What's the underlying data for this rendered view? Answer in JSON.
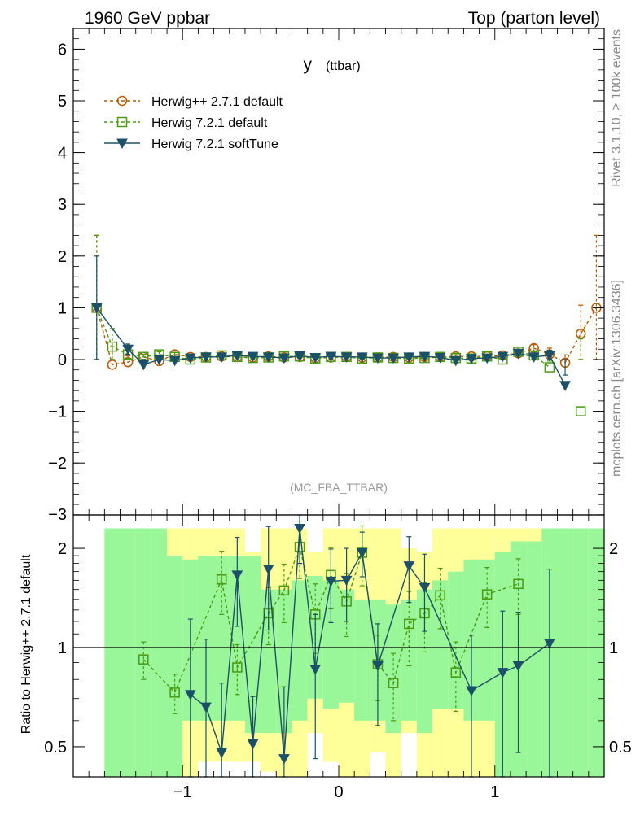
{
  "header": {
    "left": "1960 GeV ppbar",
    "right": "Top (parton level)"
  },
  "side_text": {
    "rivet": "Rivet 3.1.10, ≥ 100k events",
    "mcplots": "mcplots.cern.ch [arXiv:1306.3436]"
  },
  "watermark": "(MC_FBA_TTBAR)",
  "chart_data": [
    {
      "type": "line",
      "title": "y (ttbar)",
      "title_main": "y",
      "title_sub": "(ttbar)",
      "xlim": [
        -1.7,
        1.7
      ],
      "ylim": [
        -3,
        6.4
      ],
      "xticks": [
        -1,
        0,
        1
      ],
      "xtick_labels": [
        "−1",
        "0",
        "1"
      ],
      "yticks": [
        -2,
        -1,
        0,
        1,
        2,
        3,
        4,
        5,
        6
      ],
      "ytick_labels": [
        "−2",
        "−1",
        "0",
        "1",
        "2",
        "3",
        "4",
        "5",
        "6"
      ],
      "legend_position": "top-left",
      "series": [
        {
          "name": "Herwig++ 2.7.1 default",
          "color": "#b35a00",
          "marker": "circle",
          "dashed": true,
          "x": [
            -1.55,
            -1.45,
            -1.35,
            -1.25,
            -1.15,
            -1.05,
            -0.95,
            -0.85,
            -0.75,
            -0.65,
            -0.55,
            -0.45,
            -0.35,
            -0.25,
            -0.15,
            -0.05,
            0.05,
            0.15,
            0.25,
            0.35,
            0.45,
            0.55,
            0.65,
            0.75,
            0.85,
            0.95,
            1.05,
            1.15,
            1.25,
            1.35,
            1.45,
            1.55,
            1.65
          ],
          "y": [
            1.0,
            -0.1,
            -0.05,
            0.05,
            -0.03,
            0.1,
            0.05,
            0.05,
            0.06,
            0.05,
            0.04,
            0.06,
            0.04,
            0.05,
            0.03,
            0.04,
            0.05,
            0.04,
            0.04,
            0.05,
            0.04,
            0.05,
            0.05,
            0.06,
            0.06,
            0.06,
            0.08,
            0.12,
            0.22,
            0.1,
            -0.06,
            0.5,
            1.0
          ],
          "err": [
            1.4,
            0.35,
            0.12,
            0.05,
            0.05,
            0.04,
            0.03,
            0.03,
            0.03,
            0.03,
            0.03,
            0.03,
            0.03,
            0.03,
            0.03,
            0.03,
            0.03,
            0.03,
            0.03,
            0.03,
            0.03,
            0.03,
            0.03,
            0.03,
            0.03,
            0.04,
            0.04,
            0.05,
            0.07,
            0.12,
            0.15,
            0.55,
            1.4
          ]
        },
        {
          "name": "Herwig 7.2.1 default",
          "color": "#4a9a12",
          "marker": "square",
          "dashed": true,
          "x": [
            -1.55,
            -1.45,
            -1.35,
            -1.25,
            -1.15,
            -1.05,
            -0.95,
            -0.85,
            -0.75,
            -0.65,
            -0.55,
            -0.45,
            -0.35,
            -0.25,
            -0.15,
            -0.05,
            0.05,
            0.15,
            0.25,
            0.35,
            0.45,
            0.55,
            0.65,
            0.75,
            0.85,
            0.95,
            1.05,
            1.15,
            1.25,
            1.35,
            1.45,
            1.55,
            1.65
          ],
          "y": [
            1.0,
            0.25,
            0.1,
            0.05,
            0.1,
            0.05,
            0.0,
            0.04,
            0.08,
            0.05,
            0.03,
            0.04,
            0.06,
            0.06,
            0.02,
            0.05,
            0.05,
            0.02,
            0.04,
            0.03,
            0.02,
            0.03,
            0.05,
            0.03,
            0.02,
            0.06,
            0.0,
            0.15,
            0.08,
            -0.15,
            null,
            -1.0,
            null
          ],
          "err": [
            1.4,
            0.35,
            0.12,
            0.05,
            0.05,
            0.04,
            0.03,
            0.03,
            0.03,
            0.03,
            0.03,
            0.03,
            0.03,
            0.03,
            0.03,
            0.03,
            0.03,
            0.03,
            0.03,
            0.03,
            0.03,
            0.03,
            0.03,
            0.03,
            0.03,
            0.04,
            0.04,
            0.05,
            0.07,
            0.12,
            0.15,
            1.4,
            0
          ]
        },
        {
          "name": "Herwig 7.2.1 softTune",
          "color": "#1b5068",
          "marker": "triangle-down",
          "dashed": false,
          "x": [
            -1.55,
            -1.35,
            -1.25,
            -1.15,
            -1.05,
            -0.95,
            -0.85,
            -0.75,
            -0.65,
            -0.55,
            -0.45,
            -0.35,
            -0.25,
            -0.15,
            -0.05,
            0.05,
            0.15,
            0.25,
            0.35,
            0.45,
            0.55,
            0.65,
            0.75,
            0.85,
            0.95,
            1.05,
            1.15,
            1.25,
            1.35,
            1.45
          ],
          "y": [
            1.0,
            0.2,
            -0.1,
            0.0,
            -0.02,
            0.03,
            0.05,
            0.05,
            0.08,
            0.06,
            0.05,
            0.03,
            0.07,
            0.04,
            0.06,
            0.05,
            0.05,
            0.03,
            0.03,
            0.05,
            0.06,
            0.04,
            -0.02,
            0.02,
            0.03,
            0.06,
            0.12,
            0.05,
            0.08,
            -0.5
          ],
          "err": [
            1.0,
            0.1,
            0.05,
            0.05,
            0.04,
            0.03,
            0.03,
            0.03,
            0.03,
            0.03,
            0.03,
            0.03,
            0.03,
            0.03,
            0.03,
            0.03,
            0.03,
            0.03,
            0.03,
            0.03,
            0.03,
            0.03,
            0.03,
            0.03,
            0.04,
            0.04,
            0.05,
            0.07,
            0.1,
            0.2
          ]
        }
      ]
    },
    {
      "type": "line",
      "title": "",
      "ylabel": "Ratio to Herwig++ 2.7.1 default",
      "xlim": [
        -1.7,
        1.7
      ],
      "ylim": [
        0.4,
        2.3
      ],
      "xticks": [
        -1,
        0,
        1
      ],
      "xtick_labels": [
        "−1",
        "0",
        "1"
      ],
      "yticks": [
        0.5,
        1,
        2
      ],
      "ytick_labels": [
        "0.5",
        "1",
        "2"
      ],
      "reference_line": 1,
      "bands": {
        "bins": [
          -1.5,
          -1.4,
          -1.3,
          -1.2,
          -1.1,
          -1.0,
          -0.9,
          -0.8,
          -0.7,
          -0.6,
          -0.5,
          -0.4,
          -0.3,
          -0.2,
          -0.1,
          0.0,
          0.1,
          0.2,
          0.3,
          0.4,
          0.5,
          0.6,
          0.7,
          0.8,
          0.9,
          1.0,
          1.1,
          1.2,
          1.3,
          1.4,
          1.5,
          1.6,
          1.7
        ],
        "yellow_color": "#ffff99",
        "green_color": "#99f699",
        "yellow_lo": [
          0.4,
          0.4,
          0.4,
          0.4,
          0.5,
          0.4,
          0.45,
          0.45,
          0.45,
          0.45,
          0.42,
          0.4,
          0.4,
          0.55,
          0.45,
          0.4,
          0.4,
          0.48,
          0.4,
          0.55,
          0.4,
          0.4,
          0.4,
          0.4,
          0.4,
          0.4,
          0.4,
          0.4,
          0.4,
          0.4,
          0.4,
          0.4
        ],
        "yellow_hi": [
          2.3,
          2.3,
          2.3,
          2.3,
          2.3,
          2.3,
          2.3,
          2.3,
          2.3,
          1.95,
          2.3,
          2.3,
          2.3,
          1.95,
          2.3,
          2.3,
          2.3,
          2.3,
          2.3,
          2.0,
          1.95,
          2.3,
          2.3,
          2.3,
          2.3,
          2.3,
          2.3,
          2.3,
          2.3,
          2.3,
          2.3,
          2.3
        ],
        "green_lo": [
          0.4,
          0.4,
          0.4,
          0.4,
          0.4,
          0.6,
          0.6,
          0.6,
          0.6,
          0.55,
          0.55,
          0.55,
          0.6,
          0.7,
          0.65,
          0.68,
          0.6,
          0.6,
          0.55,
          0.6,
          0.55,
          0.65,
          0.65,
          0.6,
          0.6,
          0.4,
          0.4,
          0.4,
          0.4,
          0.4,
          0.4,
          0.4
        ],
        "green_hi": [
          2.3,
          2.3,
          2.3,
          2.3,
          1.9,
          1.85,
          1.9,
          1.9,
          1.9,
          1.9,
          1.5,
          1.5,
          1.6,
          1.65,
          1.6,
          1.5,
          1.4,
          1.4,
          1.35,
          1.4,
          1.5,
          1.6,
          1.7,
          1.85,
          1.85,
          1.95,
          2.1,
          2.1,
          2.3,
          2.3,
          2.3,
          2.3
        ]
      },
      "series": [
        {
          "name": "Herwig 7.2.1 default",
          "color": "#4a9a12",
          "marker": "square",
          "x": [
            -1.25,
            -1.05,
            -0.75,
            -0.65,
            -0.45,
            -0.35,
            -0.25,
            -0.15,
            -0.05,
            0.05,
            0.15,
            0.25,
            0.35,
            0.45,
            0.55,
            0.65,
            0.75,
            0.95,
            1.15
          ],
          "y": [
            0.92,
            0.73,
            1.61,
            0.87,
            1.27,
            1.49,
            2.02,
            1.26,
            1.66,
            1.38,
            1.94,
            0.89,
            0.78,
            1.18,
            1.27,
            1.44,
            0.84,
            1.45,
            1.56
          ],
          "err": [
            0.12,
            0.1,
            0.35,
            0.15,
            0.25,
            0.3,
            0.4,
            0.3,
            0.35,
            0.3,
            0.4,
            0.2,
            0.18,
            0.3,
            0.3,
            0.3,
            0.2,
            0.3,
            0.3
          ]
        },
        {
          "name": "Herwig 7.2.1 softTune",
          "color": "#1b5068",
          "marker": "triangle-down",
          "x": [
            -0.95,
            -0.85,
            -0.75,
            -0.65,
            -0.55,
            -0.45,
            -0.35,
            -0.25,
            -0.15,
            -0.05,
            0.05,
            0.15,
            0.25,
            0.45,
            0.55,
            0.85,
            1.05,
            1.15,
            1.35
          ],
          "y": [
            0.72,
            0.66,
            0.48,
            1.66,
            0.51,
            1.73,
            0.46,
            2.3,
            0.86,
            1.59,
            1.6,
            1.94,
            0.88,
            1.77,
            1.52,
            0.74,
            0.84,
            0.88,
            1.03
          ],
          "err": [
            0.5,
            0.4,
            0.3,
            0.5,
            0.2,
            0.6,
            0.3,
            0.5,
            0.4,
            0.4,
            0.4,
            0.3,
            0.3,
            0.4,
            0.4,
            0.35,
            0.45,
            0.4,
            0.7
          ]
        }
      ]
    }
  ]
}
